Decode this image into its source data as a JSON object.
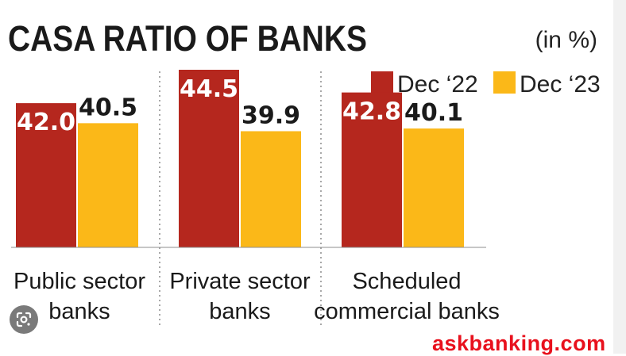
{
  "chart_data": {
    "type": "bar",
    "title": "CASA RATIO OF BANKS",
    "unit": "(in %)",
    "categories": [
      [
        "Public sector",
        "banks"
      ],
      [
        "Private sector",
        "banks"
      ],
      [
        "Scheduled",
        "commercial banks"
      ]
    ],
    "series": [
      {
        "name": "Dec ‘22",
        "color": "#b5271e",
        "values": [
          42.0,
          44.5,
          42.8
        ]
      },
      {
        "name": "Dec ‘23",
        "color": "#fbb818",
        "values": [
          40.5,
          39.9,
          40.1
        ]
      }
    ],
    "data_labels": [
      [
        "42.0",
        "44.5",
        "42.8"
      ],
      [
        "40.5",
        "39.9",
        "40.1"
      ]
    ],
    "ylim": [
      31.2,
      44.5
    ],
    "legend": "top-right",
    "grid": false
  },
  "overlay": {
    "lens_icon": "google-lens-icon",
    "watermark": "askbanking.com"
  }
}
